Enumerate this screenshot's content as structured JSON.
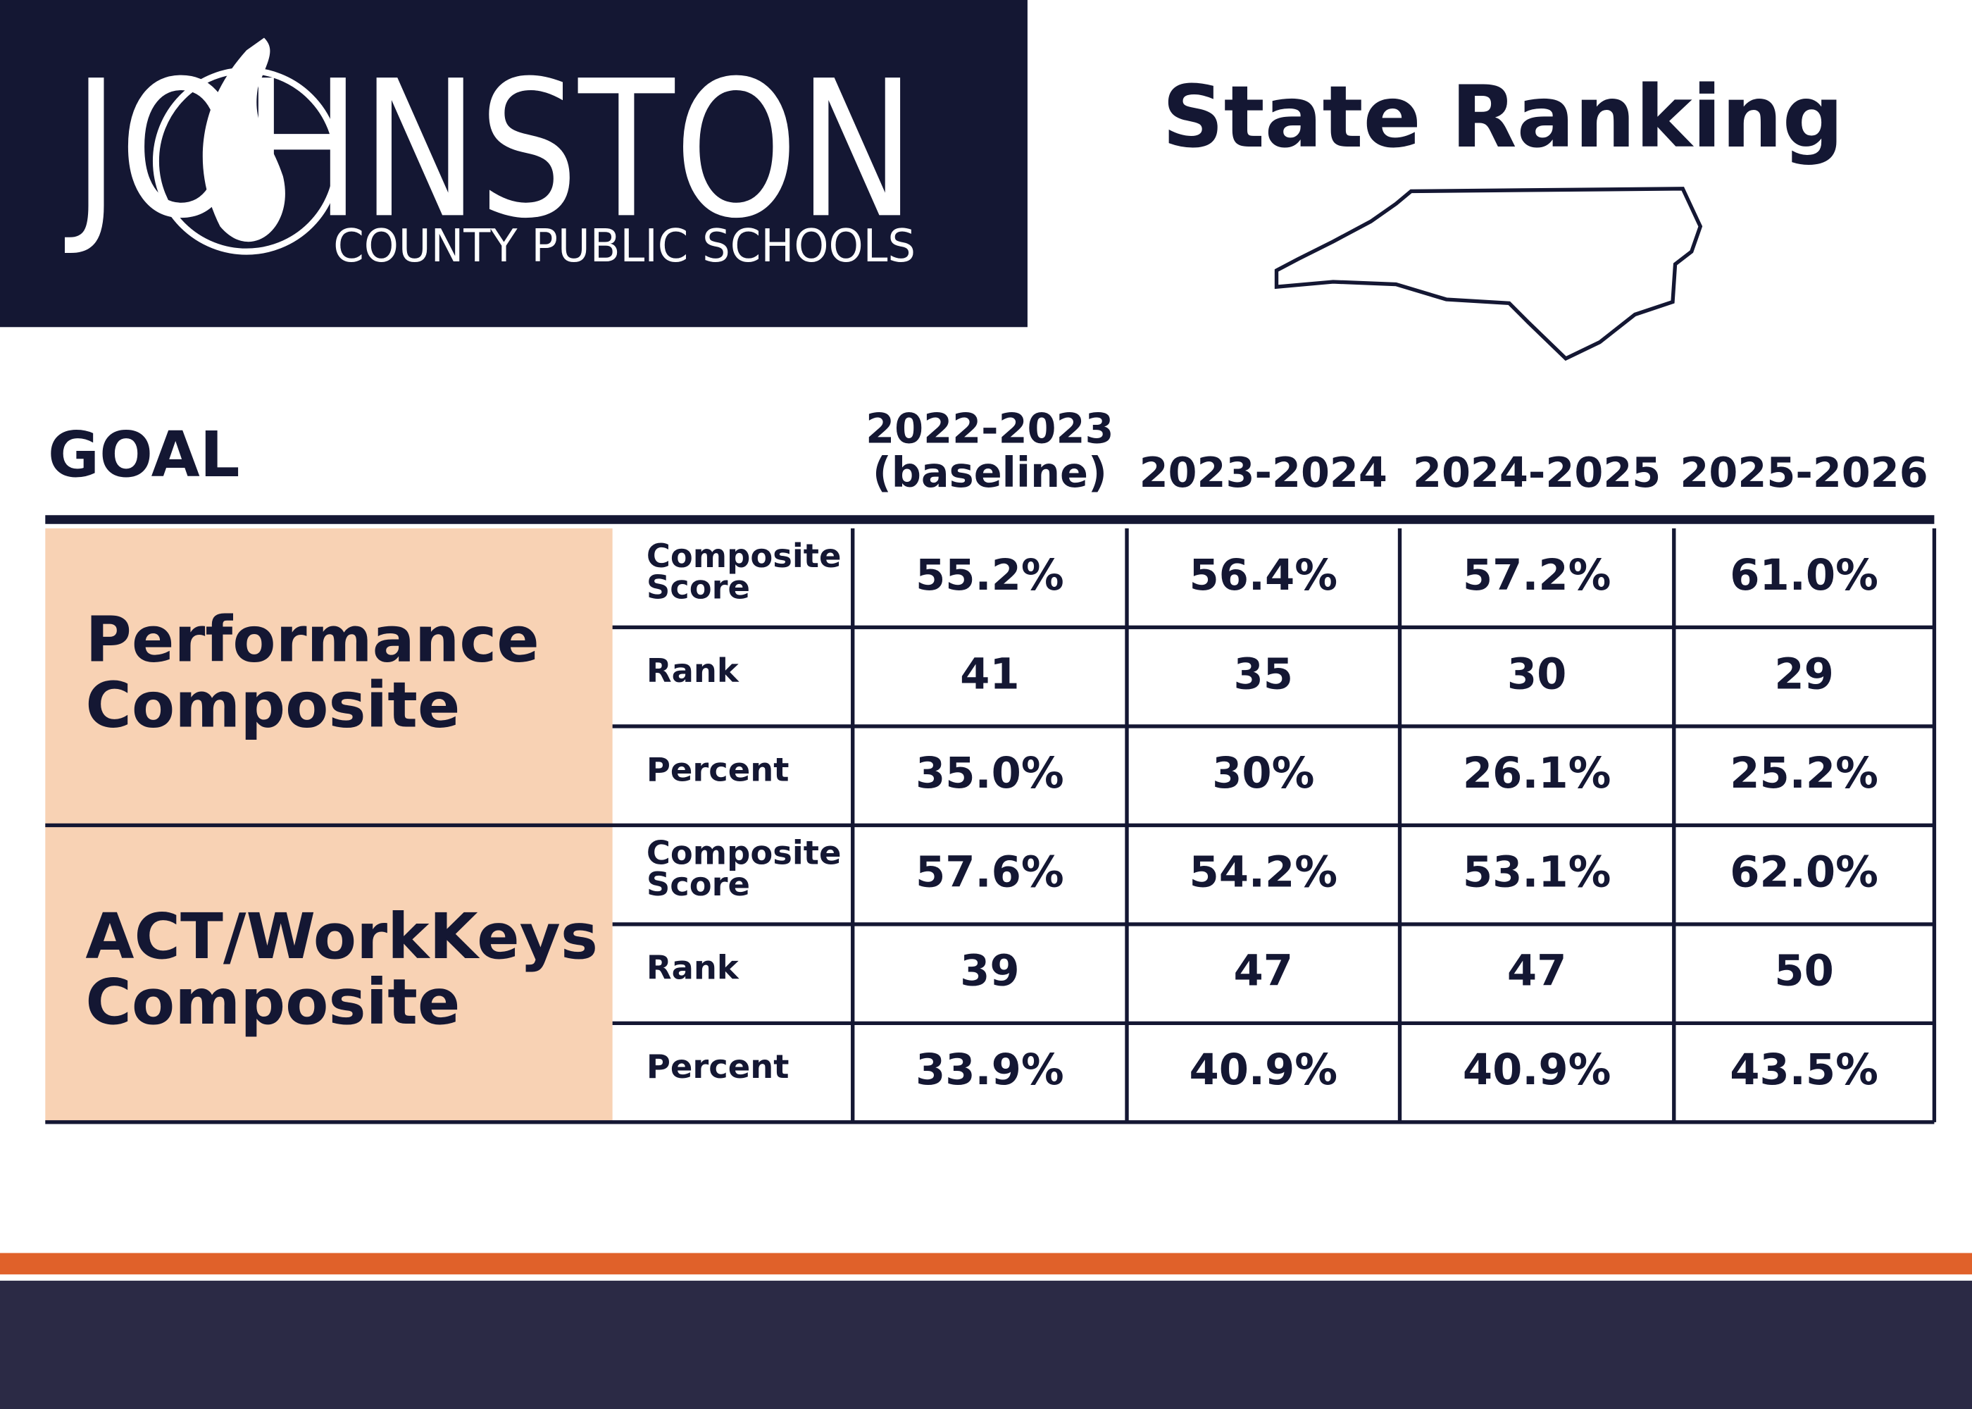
{
  "header": {
    "logo_name": "JOHNSTON",
    "logo_subtitle": "COUNTY PUBLIC SCHOOLS",
    "title": "State Ranking"
  },
  "table": {
    "goal_header": "GOAL",
    "columns": [
      [
        "2022-2023",
        "(baseline)"
      ],
      [
        "2023-2024"
      ],
      [
        "2024-2025"
      ],
      [
        "2025-2026"
      ]
    ],
    "groups": [
      {
        "name": [
          "Performance",
          "Composite"
        ],
        "rows": [
          {
            "metric": [
              "Composite",
              "Score"
            ],
            "values": [
              "55.2%",
              "56.4%",
              "57.2%",
              "61.0%"
            ]
          },
          {
            "metric": [
              "Rank"
            ],
            "values": [
              "41",
              "35",
              "30",
              "29"
            ]
          },
          {
            "metric": [
              "Percent"
            ],
            "values": [
              "35.0%",
              "30%",
              "26.1%",
              "25.2%"
            ]
          }
        ]
      },
      {
        "name": [
          "ACT/WorkKeys",
          "Composite"
        ],
        "rows": [
          {
            "metric": [
              "Composite",
              "Score"
            ],
            "values": [
              "57.6%",
              "54.2%",
              "53.1%",
              "62.0%"
            ]
          },
          {
            "metric": [
              "Rank"
            ],
            "values": [
              "39",
              "47",
              "47",
              "50"
            ]
          },
          {
            "metric": [
              "Percent"
            ],
            "values": [
              "33.9%",
              "40.9%",
              "40.9%",
              "43.5%"
            ]
          }
        ]
      }
    ]
  }
}
